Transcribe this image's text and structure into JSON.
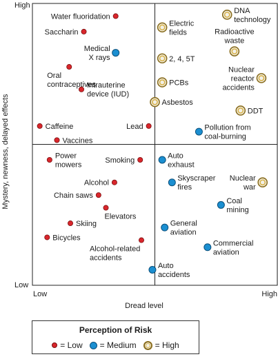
{
  "chart_data": {
    "type": "scatter",
    "x_axis": {
      "label": "Dread level",
      "low": "Low",
      "high": "High"
    },
    "y_axis": {
      "label": "Mystery, newness, delayed effects",
      "low": "Low",
      "high": "High"
    },
    "xlim": [
      0,
      1
    ],
    "ylim": [
      0,
      1
    ],
    "dividers": {
      "x": 0.5,
      "y": 0.5
    },
    "colors": {
      "low": "#d9262c",
      "medium": "#1b8fd1",
      "high": "#d8b24a"
    },
    "legend": {
      "title": "Perception of Risk",
      "items": [
        {
          "key": "low",
          "label": "= Low"
        },
        {
          "key": "medium",
          "label": "= Medium"
        },
        {
          "key": "high",
          "label": "= High"
        }
      ]
    },
    "points": [
      {
        "label": "Water fluoridation",
        "x": 0.34,
        "y": 0.955,
        "risk": "low",
        "anchor": "left"
      },
      {
        "label": "Saccharin",
        "x": 0.21,
        "y": 0.9,
        "risk": "low",
        "anchor": "left"
      },
      {
        "label": "Medical X rays",
        "x": 0.34,
        "y": 0.825,
        "risk": "medium",
        "anchor": "left"
      },
      {
        "label": "Oral contraceptives",
        "x": 0.15,
        "y": 0.775,
        "risk": "low",
        "anchor": "below"
      },
      {
        "label": "Intrauterine device (IUD)",
        "x": 0.2,
        "y": 0.695,
        "risk": "low",
        "anchor": "right"
      },
      {
        "label": "Caffeine",
        "x": 0.03,
        "y": 0.565,
        "risk": "low",
        "anchor": "right"
      },
      {
        "label": "Lead",
        "x": 0.475,
        "y": 0.565,
        "risk": "low",
        "anchor": "left"
      },
      {
        "label": "Vaccines",
        "x": 0.1,
        "y": 0.515,
        "risk": "low",
        "anchor": "right"
      },
      {
        "label": "DNA technology",
        "x": 0.795,
        "y": 0.96,
        "risk": "high",
        "anchor": "right"
      },
      {
        "label": "Electric fields",
        "x": 0.53,
        "y": 0.915,
        "risk": "high",
        "anchor": "right"
      },
      {
        "label": "Radioactive waste",
        "x": 0.825,
        "y": 0.83,
        "risk": "high",
        "anchor": "above"
      },
      {
        "label": "2, 4, 5T",
        "x": 0.53,
        "y": 0.805,
        "risk": "high",
        "anchor": "right"
      },
      {
        "label": "PCBs",
        "x": 0.53,
        "y": 0.72,
        "risk": "high",
        "anchor": "right"
      },
      {
        "label": "Nuclear reactor accidents",
        "x": 0.935,
        "y": 0.735,
        "risk": "high",
        "anchor": "left"
      },
      {
        "label": "Asbestos",
        "x": 0.5,
        "y": 0.65,
        "risk": "high",
        "anchor": "right"
      },
      {
        "label": "DDT",
        "x": 0.85,
        "y": 0.62,
        "risk": "high",
        "anchor": "right"
      },
      {
        "label": "Pollution from coal-burning",
        "x": 0.68,
        "y": 0.545,
        "risk": "medium",
        "anchor": "right"
      },
      {
        "label": "Power mowers",
        "x": 0.07,
        "y": 0.445,
        "risk": "low",
        "anchor": "right"
      },
      {
        "label": "Smoking",
        "x": 0.44,
        "y": 0.445,
        "risk": "low",
        "anchor": "left"
      },
      {
        "label": "Alcohol",
        "x": 0.335,
        "y": 0.365,
        "risk": "low",
        "anchor": "left"
      },
      {
        "label": "Chain saws",
        "x": 0.27,
        "y": 0.32,
        "risk": "low",
        "anchor": "left"
      },
      {
        "label": "Elevators",
        "x": 0.3,
        "y": 0.275,
        "risk": "low",
        "anchor": "below"
      },
      {
        "label": "Skiing",
        "x": 0.155,
        "y": 0.22,
        "risk": "low",
        "anchor": "right"
      },
      {
        "label": "Bicycles",
        "x": 0.06,
        "y": 0.17,
        "risk": "low",
        "anchor": "right"
      },
      {
        "label": "Alcohol-related accidents",
        "x": 0.445,
        "y": 0.16,
        "risk": "low",
        "anchor": "below"
      },
      {
        "label": "Auto exhaust",
        "x": 0.53,
        "y": 0.445,
        "risk": "medium",
        "anchor": "right"
      },
      {
        "label": "Skyscraper fires",
        "x": 0.57,
        "y": 0.365,
        "risk": "medium",
        "anchor": "right"
      },
      {
        "label": "Nuclear war",
        "x": 0.94,
        "y": 0.365,
        "risk": "high",
        "anchor": "left"
      },
      {
        "label": "Coal mining",
        "x": 0.77,
        "y": 0.285,
        "risk": "medium",
        "anchor": "right"
      },
      {
        "label": "General aviation",
        "x": 0.54,
        "y": 0.205,
        "risk": "medium",
        "anchor": "right"
      },
      {
        "label": "Commercial aviation",
        "x": 0.715,
        "y": 0.135,
        "risk": "medium",
        "anchor": "right"
      },
      {
        "label": "Auto accidents",
        "x": 0.49,
        "y": 0.055,
        "risk": "medium",
        "anchor": "right"
      }
    ]
  }
}
